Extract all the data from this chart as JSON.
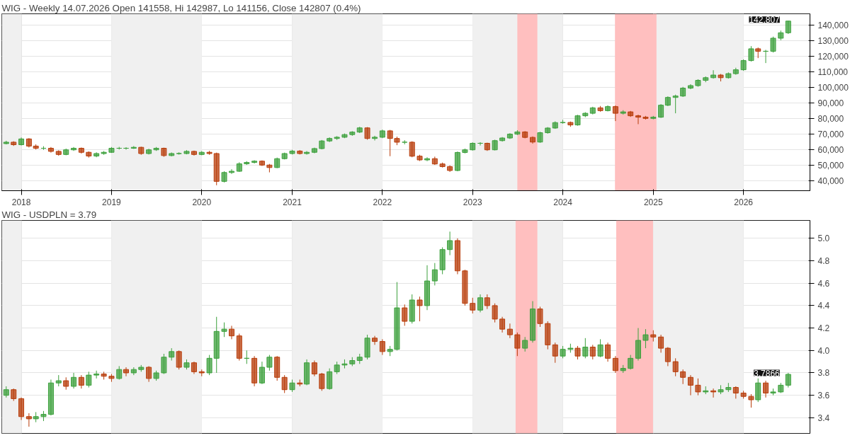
{
  "chart_data": [
    {
      "type": "candlestick",
      "title": "WIG - Weekly 14.07.2026 Open 141558, Hi 142987, Lo 141156, Close 142807 (0.4%)",
      "x": [
        "2017-11",
        "2017-12",
        "2018-01",
        "2018-02",
        "2018-03",
        "2018-04",
        "2018-05",
        "2018-06",
        "2018-07",
        "2018-08",
        "2018-09",
        "2018-10",
        "2018-11",
        "2018-12",
        "2019-01",
        "2019-02",
        "2019-03",
        "2019-04",
        "2019-05",
        "2019-06",
        "2019-07",
        "2019-08",
        "2019-09",
        "2019-10",
        "2019-11",
        "2019-12",
        "2020-01",
        "2020-02",
        "2020-03",
        "2020-04",
        "2020-05",
        "2020-06",
        "2020-07",
        "2020-08",
        "2020-09",
        "2020-10",
        "2020-11",
        "2020-12",
        "2021-01",
        "2021-02",
        "2021-03",
        "2021-04",
        "2021-05",
        "2021-06",
        "2021-07",
        "2021-08",
        "2021-09",
        "2021-10",
        "2021-11",
        "2021-12",
        "2022-01",
        "2022-02",
        "2022-03",
        "2022-04",
        "2022-05",
        "2022-06",
        "2022-07",
        "2022-08",
        "2022-09",
        "2022-10",
        "2022-11",
        "2022-12",
        "2023-01",
        "2023-02",
        "2023-03",
        "2023-04",
        "2023-05",
        "2023-06",
        "2023-07",
        "2023-08",
        "2023-09",
        "2023-10",
        "2023-11",
        "2023-12",
        "2024-01",
        "2024-02",
        "2024-03",
        "2024-04",
        "2024-05",
        "2024-06",
        "2024-07",
        "2024-08",
        "2024-09",
        "2024-10",
        "2024-11",
        "2024-12",
        "2025-01",
        "2025-02",
        "2025-03",
        "2025-04",
        "2025-05",
        "2025-06",
        "2025-07",
        "2025-08",
        "2025-09",
        "2025-10",
        "2025-11",
        "2025-12",
        "2026-01",
        "2026-02",
        "2026-03",
        "2026-04",
        "2026-05",
        "2026-06",
        "2026-07"
      ],
      "ohlc": [
        [
          64000,
          65800,
          63500,
          64900
        ],
        [
          64900,
          65500,
          62500,
          63300
        ],
        [
          63300,
          67900,
          62800,
          67000
        ],
        [
          67000,
          67500,
          61500,
          62400
        ],
        [
          62400,
          63500,
          60200,
          61000
        ],
        [
          61000,
          62300,
          60000,
          61000
        ],
        [
          61000,
          61800,
          58200,
          59000
        ],
        [
          59000,
          59700,
          56200,
          57000
        ],
        [
          57000,
          60800,
          56500,
          60000
        ],
        [
          60000,
          61800,
          59300,
          61000
        ],
        [
          61000,
          61500,
          57600,
          58400
        ],
        [
          58400,
          59000,
          55000,
          56000
        ],
        [
          56000,
          58400,
          55200,
          57600
        ],
        [
          57600,
          59200,
          56800,
          58400
        ],
        [
          58400,
          61800,
          58000,
          61000
        ],
        [
          61000,
          61900,
          60200,
          61000
        ],
        [
          61000,
          61700,
          60100,
          61000
        ],
        [
          61000,
          62400,
          60600,
          61600
        ],
        [
          61600,
          62000,
          56800,
          57600
        ],
        [
          57600,
          60700,
          57000,
          60000
        ],
        [
          60000,
          61800,
          59300,
          61000
        ],
        [
          61000,
          61400,
          55500,
          56300
        ],
        [
          56300,
          58300,
          55800,
          57600
        ],
        [
          57600,
          58400,
          56900,
          57600
        ],
        [
          57600,
          59800,
          57100,
          59000
        ],
        [
          59000,
          59500,
          56300,
          57000
        ],
        [
          57000,
          59200,
          56500,
          58400
        ],
        [
          58400,
          59300,
          56800,
          57600
        ],
        [
          57600,
          58200,
          37200,
          39700
        ],
        [
          39700,
          46200,
          39000,
          45400
        ],
        [
          45400,
          47500,
          44500,
          46200
        ],
        [
          46200,
          52000,
          45800,
          51000
        ],
        [
          51000,
          52700,
          50300,
          51900
        ],
        [
          51900,
          53300,
          51200,
          52700
        ],
        [
          52700,
          53200,
          49600,
          50200
        ],
        [
          50200,
          50900,
          45500,
          48600
        ],
        [
          48600,
          55000,
          48200,
          54300
        ],
        [
          54300,
          58200,
          53800,
          57600
        ],
        [
          57600,
          60000,
          57000,
          59200
        ],
        [
          59200,
          59800,
          57000,
          57600
        ],
        [
          57600,
          59200,
          56900,
          58400
        ],
        [
          58400,
          61400,
          57800,
          60800
        ],
        [
          60800,
          66300,
          60300,
          65700
        ],
        [
          65700,
          68000,
          65000,
          67300
        ],
        [
          67300,
          68800,
          66400,
          68100
        ],
        [
          68100,
          70500,
          67500,
          69800
        ],
        [
          69800,
          72000,
          69000,
          71400
        ],
        [
          71400,
          74800,
          70800,
          74100
        ],
        [
          74100,
          74600,
          66500,
          67300
        ],
        [
          67300,
          69000,
          66000,
          68100
        ],
        [
          68100,
          73000,
          67500,
          72200
        ],
        [
          72200,
          72800,
          55900,
          67300
        ],
        [
          67300,
          68500,
          63000,
          64900
        ],
        [
          64900,
          66200,
          63500,
          64900
        ],
        [
          64900,
          65500,
          55200,
          55900
        ],
        [
          55900,
          56800,
          52800,
          53500
        ],
        [
          53500,
          55200,
          52700,
          54300
        ],
        [
          54300,
          55600,
          50300,
          50900
        ],
        [
          50900,
          51800,
          48600,
          49200
        ],
        [
          49200,
          50000,
          45800,
          46700
        ],
        [
          46700,
          58900,
          46200,
          58300
        ],
        [
          58300,
          60800,
          57700,
          60000
        ],
        [
          60000,
          64800,
          59500,
          64200
        ],
        [
          64200,
          64900,
          62800,
          64200
        ],
        [
          64200,
          64600,
          59300,
          60000
        ],
        [
          60000,
          66500,
          59600,
          65900
        ],
        [
          65900,
          68200,
          65300,
          67600
        ],
        [
          67600,
          70700,
          67000,
          70100
        ],
        [
          70100,
          72600,
          69500,
          71500
        ],
        [
          71500,
          72000,
          67400,
          68000
        ],
        [
          68000,
          68600,
          64000,
          65000
        ],
        [
          65000,
          71600,
          64500,
          71000
        ],
        [
          71000,
          74600,
          70400,
          74000
        ],
        [
          74000,
          78300,
          73500,
          77500
        ],
        [
          77500,
          79300,
          76800,
          77600
        ],
        [
          77600,
          78200,
          74800,
          76000
        ],
        [
          76000,
          82500,
          75500,
          81900
        ],
        [
          81900,
          84200,
          81000,
          83500
        ],
        [
          83500,
          87700,
          82800,
          87000
        ],
        [
          87000,
          88200,
          84500,
          85200
        ],
        [
          85200,
          88600,
          84700,
          87800
        ],
        [
          87800,
          88500,
          78500,
          83500
        ],
        [
          83500,
          85500,
          82700,
          84400
        ],
        [
          84400,
          85000,
          81200,
          81900
        ],
        [
          81900,
          82600,
          76500,
          81000
        ],
        [
          81000,
          81800,
          79500,
          80200
        ],
        [
          80200,
          81800,
          79600,
          81000
        ],
        [
          81000,
          89400,
          80500,
          88700
        ],
        [
          88700,
          94400,
          88100,
          93700
        ],
        [
          93700,
          95500,
          83500,
          94600
        ],
        [
          94600,
          100500,
          94000,
          99700
        ],
        [
          99700,
          102200,
          99000,
          101300
        ],
        [
          101300,
          105400,
          100600,
          104700
        ],
        [
          104700,
          107200,
          103500,
          106400
        ],
        [
          106400,
          111200,
          105800,
          108100
        ],
        [
          108100,
          108800,
          104000,
          106400
        ],
        [
          106400,
          109800,
          105800,
          109000
        ],
        [
          109000,
          112800,
          108300,
          111500
        ],
        [
          111500,
          118200,
          110800,
          117400
        ],
        [
          117400,
          126700,
          116800,
          125000
        ],
        [
          125000,
          125800,
          119000,
          123400
        ],
        [
          123400,
          124300,
          115800,
          123400
        ],
        [
          123400,
          132800,
          122600,
          131800
        ],
        [
          131800,
          136700,
          130500,
          135300
        ],
        [
          135300,
          143000,
          134500,
          142807
        ]
      ],
      "colors": [
        "#3ca03c",
        "#b83c0a",
        "#3ca03c",
        "#b83c0a",
        "#b83c0a",
        "#3ca03c",
        "#b83c0a",
        "#b83c0a",
        "#3ca03c",
        "#3ca03c",
        "#b83c0a",
        "#b83c0a",
        "#3ca03c",
        "#3ca03c",
        "#3ca03c",
        "#3ca03c",
        "#3ca03c",
        "#3ca03c",
        "#b83c0a",
        "#3ca03c",
        "#3ca03c",
        "#b83c0a",
        "#3ca03c",
        "#3ca03c",
        "#3ca03c",
        "#b83c0a",
        "#3ca03c",
        "#b83c0a",
        "#b83c0a",
        "#3ca03c",
        "#3ca03c",
        "#3ca03c",
        "#3ca03c",
        "#3ca03c",
        "#b83c0a",
        "#b83c0a",
        "#3ca03c",
        "#3ca03c",
        "#3ca03c",
        "#b83c0a",
        "#3ca03c",
        "#3ca03c",
        "#3ca03c",
        "#3ca03c",
        "#3ca03c",
        "#3ca03c",
        "#3ca03c",
        "#3ca03c",
        "#b83c0a",
        "#3ca03c",
        "#3ca03c",
        "#b83c0a",
        "#b83c0a",
        "#3ca03c",
        "#b83c0a",
        "#b83c0a",
        "#3ca03c",
        "#b83c0a",
        "#b83c0a",
        "#b83c0a",
        "#3ca03c",
        "#3ca03c",
        "#3ca03c",
        "#3ca03c",
        "#b83c0a",
        "#3ca03c",
        "#3ca03c",
        "#3ca03c",
        "#3ca03c",
        "#b83c0a",
        "#b83c0a",
        "#3ca03c",
        "#3ca03c",
        "#3ca03c",
        "#3ca03c",
        "#b83c0a",
        "#3ca03c",
        "#3ca03c",
        "#3ca03c",
        "#b83c0a",
        "#3ca03c",
        "#b83c0a",
        "#3ca03c",
        "#b83c0a",
        "#b83c0a",
        "#b83c0a",
        "#3ca03c",
        "#3ca03c",
        "#3ca03c",
        "#3ca03c",
        "#3ca03c",
        "#3ca03c",
        "#3ca03c",
        "#3ca03c",
        "#3ca03c",
        "#b83c0a",
        "#3ca03c",
        "#3ca03c",
        "#3ca03c",
        "#3ca03c",
        "#b83c0a",
        "#3ca03c",
        "#3ca03c",
        "#3ca03c",
        "#3ca03c"
      ],
      "xlim": [
        "2017-10-14",
        "2026-09-27"
      ],
      "xticks": [
        "2018",
        "2019",
        "2020",
        "2021",
        "2022",
        "2023",
        "2024",
        "2025",
        "2026"
      ],
      "ylim": [
        33700,
        147500
      ],
      "yticks": [
        {
          "value": 40000,
          "label": "40,000"
        },
        {
          "value": 50000,
          "label": "50,000"
        },
        {
          "value": 60000,
          "label": "60,000"
        },
        {
          "value": 70000,
          "label": "70,000"
        },
        {
          "value": 80000,
          "label": "80,000"
        },
        {
          "value": 90000,
          "label": "90,000"
        },
        {
          "value": 100000,
          "label": "100,000"
        },
        {
          "value": 110000,
          "label": "110,000"
        },
        {
          "value": 120000,
          "label": "120,000"
        },
        {
          "value": 130000,
          "label": "130,000"
        },
        {
          "value": 140000,
          "label": "140,000"
        }
      ],
      "grid": true,
      "bands": [
        {
          "axis": "x",
          "from": "2017-10-14",
          "to": "2018-01-01",
          "label": null,
          "color": "#f0f0f0"
        },
        {
          "axis": "x",
          "from": "2019-01-01",
          "to": "2020-01-01",
          "label": null,
          "color": "#f0f0f0"
        },
        {
          "axis": "x",
          "from": "2021-01-01",
          "to": "2022-01-01",
          "label": null,
          "color": "#f0f0f0"
        },
        {
          "axis": "x",
          "from": "2023-01-01",
          "to": "2024-01-01",
          "label": null,
          "color": "#f0f0f0"
        },
        {
          "axis": "x",
          "from": "2025-01-01",
          "to": "2026-01-01",
          "label": null,
          "color": "#f0f0f0"
        },
        {
          "axis": "x",
          "from": "2023-07-01",
          "to": "2023-09-20",
          "label": null,
          "color": "#ffbfbf"
        },
        {
          "axis": "x",
          "from": "2024-07-30",
          "to": "2025-01-14",
          "label": null,
          "color": "#ffbfbf"
        }
      ],
      "annotations": [
        {
          "text": "142,807",
          "x": "2026-07",
          "y": 142807
        }
      ]
    },
    {
      "type": "candlestick",
      "title": "WIG - USDPLN = 3.79",
      "x": [
        "2017-11",
        "2017-12",
        "2018-01",
        "2018-02",
        "2018-03",
        "2018-04",
        "2018-05",
        "2018-06",
        "2018-07",
        "2018-08",
        "2018-09",
        "2018-10",
        "2018-11",
        "2018-12",
        "2019-01",
        "2019-02",
        "2019-03",
        "2019-04",
        "2019-05",
        "2019-06",
        "2019-07",
        "2019-08",
        "2019-09",
        "2019-10",
        "2019-11",
        "2019-12",
        "2020-01",
        "2020-02",
        "2020-03",
        "2020-04",
        "2020-05",
        "2020-06",
        "2020-07",
        "2020-08",
        "2020-09",
        "2020-10",
        "2020-11",
        "2020-12",
        "2021-01",
        "2021-02",
        "2021-03",
        "2021-04",
        "2021-05",
        "2021-06",
        "2021-07",
        "2021-08",
        "2021-09",
        "2021-10",
        "2021-11",
        "2021-12",
        "2022-01",
        "2022-02",
        "2022-03",
        "2022-04",
        "2022-05",
        "2022-06",
        "2022-07",
        "2022-08",
        "2022-09",
        "2022-10",
        "2022-11",
        "2022-12",
        "2023-01",
        "2023-02",
        "2023-03",
        "2023-04",
        "2023-05",
        "2023-06",
        "2023-07",
        "2023-08",
        "2023-09",
        "2023-10",
        "2023-11",
        "2023-12",
        "2024-01",
        "2024-02",
        "2024-03",
        "2024-04",
        "2024-05",
        "2024-06",
        "2024-07",
        "2024-08",
        "2024-09",
        "2024-10",
        "2024-11",
        "2024-12",
        "2025-01",
        "2025-02",
        "2025-03",
        "2025-04",
        "2025-05",
        "2025-06",
        "2025-07",
        "2025-08",
        "2025-09",
        "2025-10",
        "2025-11",
        "2025-12",
        "2026-01",
        "2026-02",
        "2026-03",
        "2026-04",
        "2026-05",
        "2026-06",
        "2026-07"
      ],
      "ohlc": [
        [
          3.6,
          3.68,
          3.58,
          3.65
        ],
        [
          3.65,
          3.66,
          3.55,
          3.57
        ],
        [
          3.57,
          3.58,
          3.38,
          3.41
        ],
        [
          3.41,
          3.44,
          3.32,
          3.39
        ],
        [
          3.39,
          3.45,
          3.36,
          3.41
        ],
        [
          3.41,
          3.46,
          3.37,
          3.43
        ],
        [
          3.43,
          3.74,
          3.42,
          3.71
        ],
        [
          3.71,
          3.78,
          3.68,
          3.73
        ],
        [
          3.73,
          3.76,
          3.65,
          3.68
        ],
        [
          3.68,
          3.8,
          3.66,
          3.76
        ],
        [
          3.76,
          3.78,
          3.66,
          3.69
        ],
        [
          3.69,
          3.81,
          3.67,
          3.78
        ],
        [
          3.78,
          3.82,
          3.75,
          3.79
        ],
        [
          3.79,
          3.81,
          3.74,
          3.77
        ],
        [
          3.77,
          3.79,
          3.72,
          3.75
        ],
        [
          3.75,
          3.86,
          3.74,
          3.83
        ],
        [
          3.83,
          3.85,
          3.77,
          3.8
        ],
        [
          3.8,
          3.85,
          3.78,
          3.83
        ],
        [
          3.83,
          3.87,
          3.81,
          3.85
        ],
        [
          3.85,
          3.86,
          3.72,
          3.75
        ],
        [
          3.75,
          3.82,
          3.73,
          3.8
        ],
        [
          3.8,
          3.97,
          3.79,
          3.94
        ],
        [
          3.94,
          4.02,
          3.91,
          3.99
        ],
        [
          3.99,
          4.0,
          3.83,
          3.85
        ],
        [
          3.85,
          3.92,
          3.83,
          3.89
        ],
        [
          3.89,
          3.9,
          3.79,
          3.81
        ],
        [
          3.81,
          3.83,
          3.77,
          3.8
        ],
        [
          3.8,
          3.96,
          3.78,
          3.93
        ],
        [
          3.93,
          4.3,
          3.8,
          4.17
        ],
        [
          4.17,
          4.25,
          4.12,
          4.19
        ],
        [
          4.19,
          4.22,
          4.1,
          4.13
        ],
        [
          4.13,
          4.15,
          3.91,
          3.93
        ],
        [
          3.93,
          4.0,
          3.88,
          3.93
        ],
        [
          3.93,
          3.95,
          3.68,
          3.71
        ],
        [
          3.71,
          3.9,
          3.7,
          3.85
        ],
        [
          3.85,
          3.96,
          3.82,
          3.94
        ],
        [
          3.94,
          3.95,
          3.73,
          3.76
        ],
        [
          3.76,
          3.78,
          3.62,
          3.65
        ],
        [
          3.65,
          3.74,
          3.63,
          3.71
        ],
        [
          3.71,
          3.74,
          3.68,
          3.7
        ],
        [
          3.7,
          3.92,
          3.69,
          3.89
        ],
        [
          3.89,
          3.91,
          3.77,
          3.79
        ],
        [
          3.79,
          3.8,
          3.64,
          3.66
        ],
        [
          3.66,
          3.84,
          3.65,
          3.81
        ],
        [
          3.81,
          3.9,
          3.79,
          3.87
        ],
        [
          3.87,
          3.92,
          3.84,
          3.88
        ],
        [
          3.88,
          3.94,
          3.86,
          3.91
        ],
        [
          3.91,
          3.97,
          3.88,
          3.94
        ],
        [
          3.94,
          4.14,
          3.92,
          4.11
        ],
        [
          4.11,
          4.13,
          4.05,
          4.08
        ],
        [
          4.08,
          4.1,
          3.96,
          3.99
        ],
        [
          3.99,
          4.04,
          3.95,
          4.01
        ],
        [
          4.01,
          4.61,
          4.0,
          4.38
        ],
        [
          4.38,
          4.41,
          4.22,
          4.26
        ],
        [
          4.26,
          4.5,
          4.24,
          4.45
        ],
        [
          4.45,
          4.48,
          4.26,
          4.4
        ],
        [
          4.4,
          4.76,
          4.36,
          4.62
        ],
        [
          4.62,
          4.78,
          4.58,
          4.72
        ],
        [
          4.72,
          4.92,
          4.68,
          4.9
        ],
        [
          4.9,
          5.06,
          4.85,
          4.98
        ],
        [
          4.98,
          5.0,
          4.68,
          4.71
        ],
        [
          4.71,
          4.72,
          4.4,
          4.42
        ],
        [
          4.42,
          4.47,
          4.33,
          4.36
        ],
        [
          4.36,
          4.5,
          4.34,
          4.47
        ],
        [
          4.47,
          4.5,
          4.37,
          4.4
        ],
        [
          4.4,
          4.42,
          4.25,
          4.28
        ],
        [
          4.28,
          4.3,
          4.16,
          4.19
        ],
        [
          4.19,
          4.24,
          4.11,
          4.14
        ],
        [
          4.14,
          4.16,
          3.95,
          4.02
        ],
        [
          4.02,
          4.12,
          3.99,
          4.09
        ],
        [
          4.09,
          4.44,
          4.07,
          4.37
        ],
        [
          4.37,
          4.39,
          4.21,
          4.24
        ],
        [
          4.24,
          4.26,
          4.01,
          4.05
        ],
        [
          4.05,
          4.07,
          3.89,
          3.95
        ],
        [
          3.95,
          4.04,
          3.93,
          4.01
        ],
        [
          4.01,
          4.06,
          3.98,
          4.02
        ],
        [
          4.02,
          4.04,
          3.92,
          3.95
        ],
        [
          3.95,
          4.11,
          3.93,
          4.03
        ],
        [
          4.03,
          4.05,
          3.92,
          3.95
        ],
        [
          3.95,
          4.1,
          3.94,
          4.05
        ],
        [
          4.05,
          4.07,
          3.9,
          3.93
        ],
        [
          3.93,
          3.95,
          3.8,
          3.82
        ],
        [
          3.82,
          3.87,
          3.8,
          3.84
        ],
        [
          3.84,
          3.96,
          3.83,
          3.93
        ],
        [
          3.93,
          4.2,
          3.91,
          4.09
        ],
        [
          4.09,
          4.19,
          4.02,
          4.14
        ],
        [
          4.14,
          4.18,
          4.08,
          4.12
        ],
        [
          4.12,
          4.14,
          3.98,
          4.02
        ],
        [
          4.02,
          4.03,
          3.86,
          3.9
        ],
        [
          3.9,
          3.93,
          3.77,
          3.81
        ],
        [
          3.81,
          3.83,
          3.7,
          3.76
        ],
        [
          3.76,
          3.78,
          3.6,
          3.69
        ],
        [
          3.69,
          3.75,
          3.6,
          3.63
        ],
        [
          3.63,
          3.68,
          3.61,
          3.64
        ],
        [
          3.64,
          3.66,
          3.58,
          3.63
        ],
        [
          3.63,
          3.69,
          3.61,
          3.65
        ],
        [
          3.65,
          3.71,
          3.63,
          3.67
        ],
        [
          3.67,
          3.68,
          3.57,
          3.62
        ],
        [
          3.62,
          3.64,
          3.57,
          3.59
        ],
        [
          3.59,
          3.61,
          3.49,
          3.56
        ],
        [
          3.56,
          3.75,
          3.54,
          3.71
        ],
        [
          3.71,
          3.73,
          3.58,
          3.62
        ],
        [
          3.62,
          3.66,
          3.6,
          3.63
        ],
        [
          3.63,
          3.71,
          3.62,
          3.69
        ],
        [
          3.69,
          3.8,
          3.67,
          3.7866
        ]
      ],
      "colors": [
        "#3ca03c",
        "#b83c0a",
        "#b83c0a",
        "#b83c0a",
        "#3ca03c",
        "#3ca03c",
        "#3ca03c",
        "#3ca03c",
        "#b83c0a",
        "#3ca03c",
        "#b83c0a",
        "#3ca03c",
        "#3ca03c",
        "#b83c0a",
        "#b83c0a",
        "#3ca03c",
        "#b83c0a",
        "#3ca03c",
        "#3ca03c",
        "#b83c0a",
        "#3ca03c",
        "#3ca03c",
        "#3ca03c",
        "#b83c0a",
        "#3ca03c",
        "#b83c0a",
        "#b83c0a",
        "#3ca03c",
        "#3ca03c",
        "#3ca03c",
        "#b83c0a",
        "#b83c0a",
        "#3ca03c",
        "#b83c0a",
        "#3ca03c",
        "#3ca03c",
        "#b83c0a",
        "#b83c0a",
        "#3ca03c",
        "#b83c0a",
        "#3ca03c",
        "#b83c0a",
        "#b83c0a",
        "#3ca03c",
        "#3ca03c",
        "#3ca03c",
        "#3ca03c",
        "#3ca03c",
        "#3ca03c",
        "#b83c0a",
        "#b83c0a",
        "#3ca03c",
        "#3ca03c",
        "#b83c0a",
        "#3ca03c",
        "#b83c0a",
        "#3ca03c",
        "#3ca03c",
        "#3ca03c",
        "#3ca03c",
        "#b83c0a",
        "#b83c0a",
        "#b83c0a",
        "#3ca03c",
        "#b83c0a",
        "#b83c0a",
        "#b83c0a",
        "#b83c0a",
        "#b83c0a",
        "#3ca03c",
        "#3ca03c",
        "#b83c0a",
        "#b83c0a",
        "#b83c0a",
        "#3ca03c",
        "#3ca03c",
        "#b83c0a",
        "#3ca03c",
        "#b83c0a",
        "#3ca03c",
        "#b83c0a",
        "#b83c0a",
        "#3ca03c",
        "#3ca03c",
        "#3ca03c",
        "#3ca03c",
        "#b83c0a",
        "#b83c0a",
        "#b83c0a",
        "#b83c0a",
        "#b83c0a",
        "#b83c0a",
        "#b83c0a",
        "#3ca03c",
        "#b83c0a",
        "#3ca03c",
        "#3ca03c",
        "#b83c0a",
        "#b83c0a",
        "#b83c0a",
        "#3ca03c",
        "#b83c0a",
        "#3ca03c",
        "#3ca03c",
        "#3ca03c"
      ],
      "xlim": [
        "2017-10-14",
        "2026-09-27"
      ],
      "xticks": [
        "2018",
        "2019",
        "2020",
        "2021",
        "2022",
        "2023",
        "2024",
        "2025",
        "2026"
      ],
      "ylim": [
        3.26,
        5.16
      ],
      "yticks": [
        3.4,
        3.6,
        3.8,
        {
          "value": 4,
          "label": "4.0"
        },
        4.2,
        4.4,
        4.6,
        4.8,
        {
          "value": 5,
          "label": "5.0"
        }
      ],
      "tick_labels": "y",
      "grid": true,
      "bands": [
        {
          "axis": "x",
          "from": "2017-10-14",
          "to": "2018-01-01",
          "label": null,
          "color": "#f0f0f0"
        },
        {
          "axis": "x",
          "from": "2019-01-01",
          "to": "2020-01-01",
          "label": null,
          "color": "#f0f0f0"
        },
        {
          "axis": "x",
          "from": "2021-01-01",
          "to": "2022-01-01",
          "label": null,
          "color": "#f0f0f0"
        },
        {
          "axis": "x",
          "from": "2023-01-01",
          "to": "2024-01-01",
          "label": null,
          "color": "#f0f0f0"
        },
        {
          "axis": "x",
          "from": "2025-01-01",
          "to": "2026-01-01",
          "label": null,
          "color": "#f0f0f0"
        },
        {
          "axis": "x",
          "from": "2023-06-24",
          "to": "2023-09-20",
          "label": null,
          "color": "#ffbfbf"
        },
        {
          "axis": "x",
          "from": "2024-08-04",
          "to": "2024-12-31",
          "label": null,
          "color": "#ffbfbf"
        }
      ],
      "annotations": [
        {
          "text": "3.7866",
          "x": "2026-07",
          "y": 3.7866
        }
      ]
    }
  ]
}
